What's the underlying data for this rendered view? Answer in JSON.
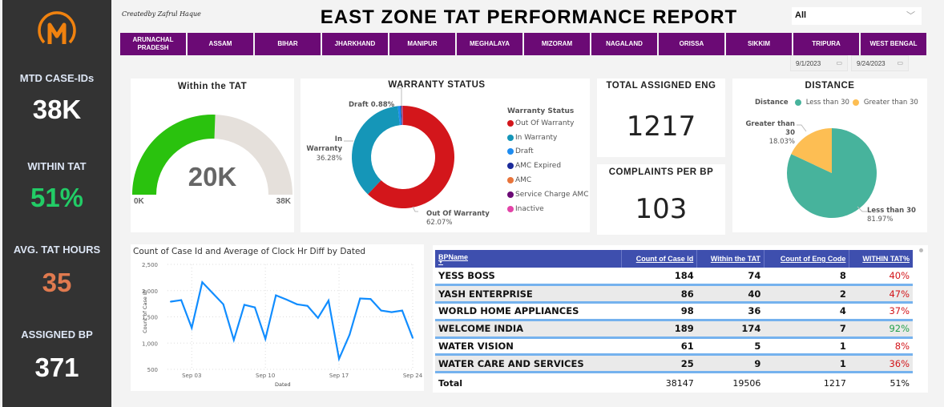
{
  "sidebar": {
    "logo_icon": "m-circle-logo",
    "kpis": [
      {
        "label": "MTD CASE-IDs",
        "value": "38K",
        "color": "#ffffff"
      },
      {
        "label": "WITHIN TAT",
        "value": "51%",
        "color": "#22cc66"
      },
      {
        "label": "AVG. TAT HOURS",
        "value": "35",
        "color": "#e07a4f"
      },
      {
        "label": "ASSIGNED BP",
        "value": "371",
        "color": "#ffffff"
      }
    ]
  },
  "header": {
    "created_by": "Createdby Zafrul Haque",
    "title": "EAST ZONE TAT PERFORMANCE REPORT",
    "dropdown_value": "All",
    "date_start": "9/1/2023",
    "date_end": "9/24/2023"
  },
  "states": [
    "ARUNACHAL PRADESH",
    "ASSAM",
    "BIHAR",
    "JHARKHAND",
    "MANIPUR",
    "MEGHALAYA",
    "MIZORAM",
    "NAGALAND",
    "ORISSA",
    "SIKKIM",
    "TRIPURA",
    "WEST BENGAL"
  ],
  "gauge": {
    "title": "Within the TAT",
    "value_label": "20K",
    "min_label": "0K",
    "max_label": "38K",
    "value": 19506,
    "max": 38147,
    "fill_color": "#2ac20e",
    "track_color": "#e5e0db"
  },
  "warranty": {
    "title": "WARRANTY STATUS",
    "legend_title": "Warranty Status",
    "labels": {
      "draft": "Draft 0.88%",
      "in_warranty": "In Warranty",
      "in_warranty_pct": "36.28%",
      "out_warranty": "Out Of Warranty",
      "out_warranty_pct": "62.07%"
    },
    "legend": [
      {
        "name": "Out Of Warranty",
        "color": "#d3161b"
      },
      {
        "name": "In Warranty",
        "color": "#1596b8"
      },
      {
        "name": "Draft",
        "color": "#1e8cf0"
      },
      {
        "name": "AMC Expired",
        "color": "#1b2a9a"
      },
      {
        "name": "AMC",
        "color": "#e8743b"
      },
      {
        "name": "Service Charge AMC",
        "color": "#6b0a75"
      },
      {
        "name": "Inactive",
        "color": "#e344a8"
      }
    ]
  },
  "total_eng": {
    "title": "TOTAL ASSIGNED ENG",
    "value": "1217"
  },
  "complaints": {
    "title": "COMPLAINTS PER BP",
    "value": "103"
  },
  "distance": {
    "title": "DISTANCE",
    "legend_title": "Distance",
    "legend": [
      {
        "name": "Less than 30",
        "color": "#47b39c"
      },
      {
        "name": "Greater than 30",
        "color": "#fdbe53"
      }
    ],
    "label_gt": "Greater than 30",
    "label_gt_pct": "18.03%",
    "label_lt": "Less than 30",
    "label_lt_pct": "81.97%"
  },
  "table": {
    "headers": [
      "BPName",
      "Count of Case Id",
      "Within the TAT",
      "Count of Eng Code",
      "WITHIN TAT%"
    ],
    "rows": [
      {
        "name": "YESS BOSS",
        "cases": "184",
        "within": "74",
        "eng": "8",
        "pct": "40%",
        "good": false
      },
      {
        "name": "YASH ENTERPRISE",
        "cases": "86",
        "within": "40",
        "eng": "2",
        "pct": "47%",
        "good": false
      },
      {
        "name": "WORLD HOME APPLIANCES",
        "cases": "98",
        "within": "36",
        "eng": "4",
        "pct": "37%",
        "good": false
      },
      {
        "name": "WELCOME INDIA",
        "cases": "189",
        "within": "174",
        "eng": "7",
        "pct": "92%",
        "good": true
      },
      {
        "name": "WATER VISION",
        "cases": "61",
        "within": "5",
        "eng": "1",
        "pct": "8%",
        "good": false
      },
      {
        "name": "WATER CARE AND SERVICES",
        "cases": "25",
        "within": "9",
        "eng": "1",
        "pct": "36%",
        "good": false
      }
    ],
    "total": {
      "name": "Total",
      "cases": "38147",
      "within": "19506",
      "eng": "1217",
      "pct": "51%"
    },
    "bad_color": "#d3161b",
    "good_color": "#22a04a"
  },
  "chart_data": [
    {
      "type": "pie",
      "title": "WARRANTY STATUS",
      "donut": true,
      "categories": [
        "Out Of Warranty",
        "In Warranty",
        "Draft",
        "AMC Expired",
        "AMC",
        "Service Charge AMC",
        "Inactive"
      ],
      "values": [
        62.07,
        36.28,
        0.88,
        0.3,
        0.2,
        0.17,
        0.1
      ]
    },
    {
      "type": "pie",
      "title": "DISTANCE",
      "categories": [
        "Less than 30",
        "Greater than 30"
      ],
      "values": [
        81.97,
        18.03
      ]
    },
    {
      "type": "line",
      "title": "Count of Case Id and Average of Clock Hr Diff by Dated",
      "xlabel": "Dated",
      "ylabel": "Count of Case Id",
      "x": [
        "Sep 01",
        "Sep 02",
        "Sep 03",
        "Sep 04",
        "Sep 05",
        "Sep 06",
        "Sep 07",
        "Sep 08",
        "Sep 09",
        "Sep 10",
        "Sep 11",
        "Sep 12",
        "Sep 13",
        "Sep 14",
        "Sep 15",
        "Sep 16",
        "Sep 17",
        "Sep 18",
        "Sep 19",
        "Sep 20",
        "Sep 21",
        "Sep 22",
        "Sep 23",
        "Sep 24"
      ],
      "xticks": [
        "Sep 03",
        "Sep 10",
        "Sep 17",
        "Sep 24"
      ],
      "yticks": [
        "2,500",
        "2,000",
        "1,500",
        "1,000",
        "500"
      ],
      "values": [
        1790,
        1820,
        1290,
        2160,
        1950,
        1740,
        1060,
        1730,
        1680,
        1080,
        1910,
        1830,
        1740,
        1710,
        1480,
        1810,
        700,
        1160,
        1850,
        1840,
        1620,
        1590,
        1620,
        1100
      ],
      "ylim": [
        500,
        2500
      ],
      "grid": true,
      "color": "#118dff"
    }
  ]
}
